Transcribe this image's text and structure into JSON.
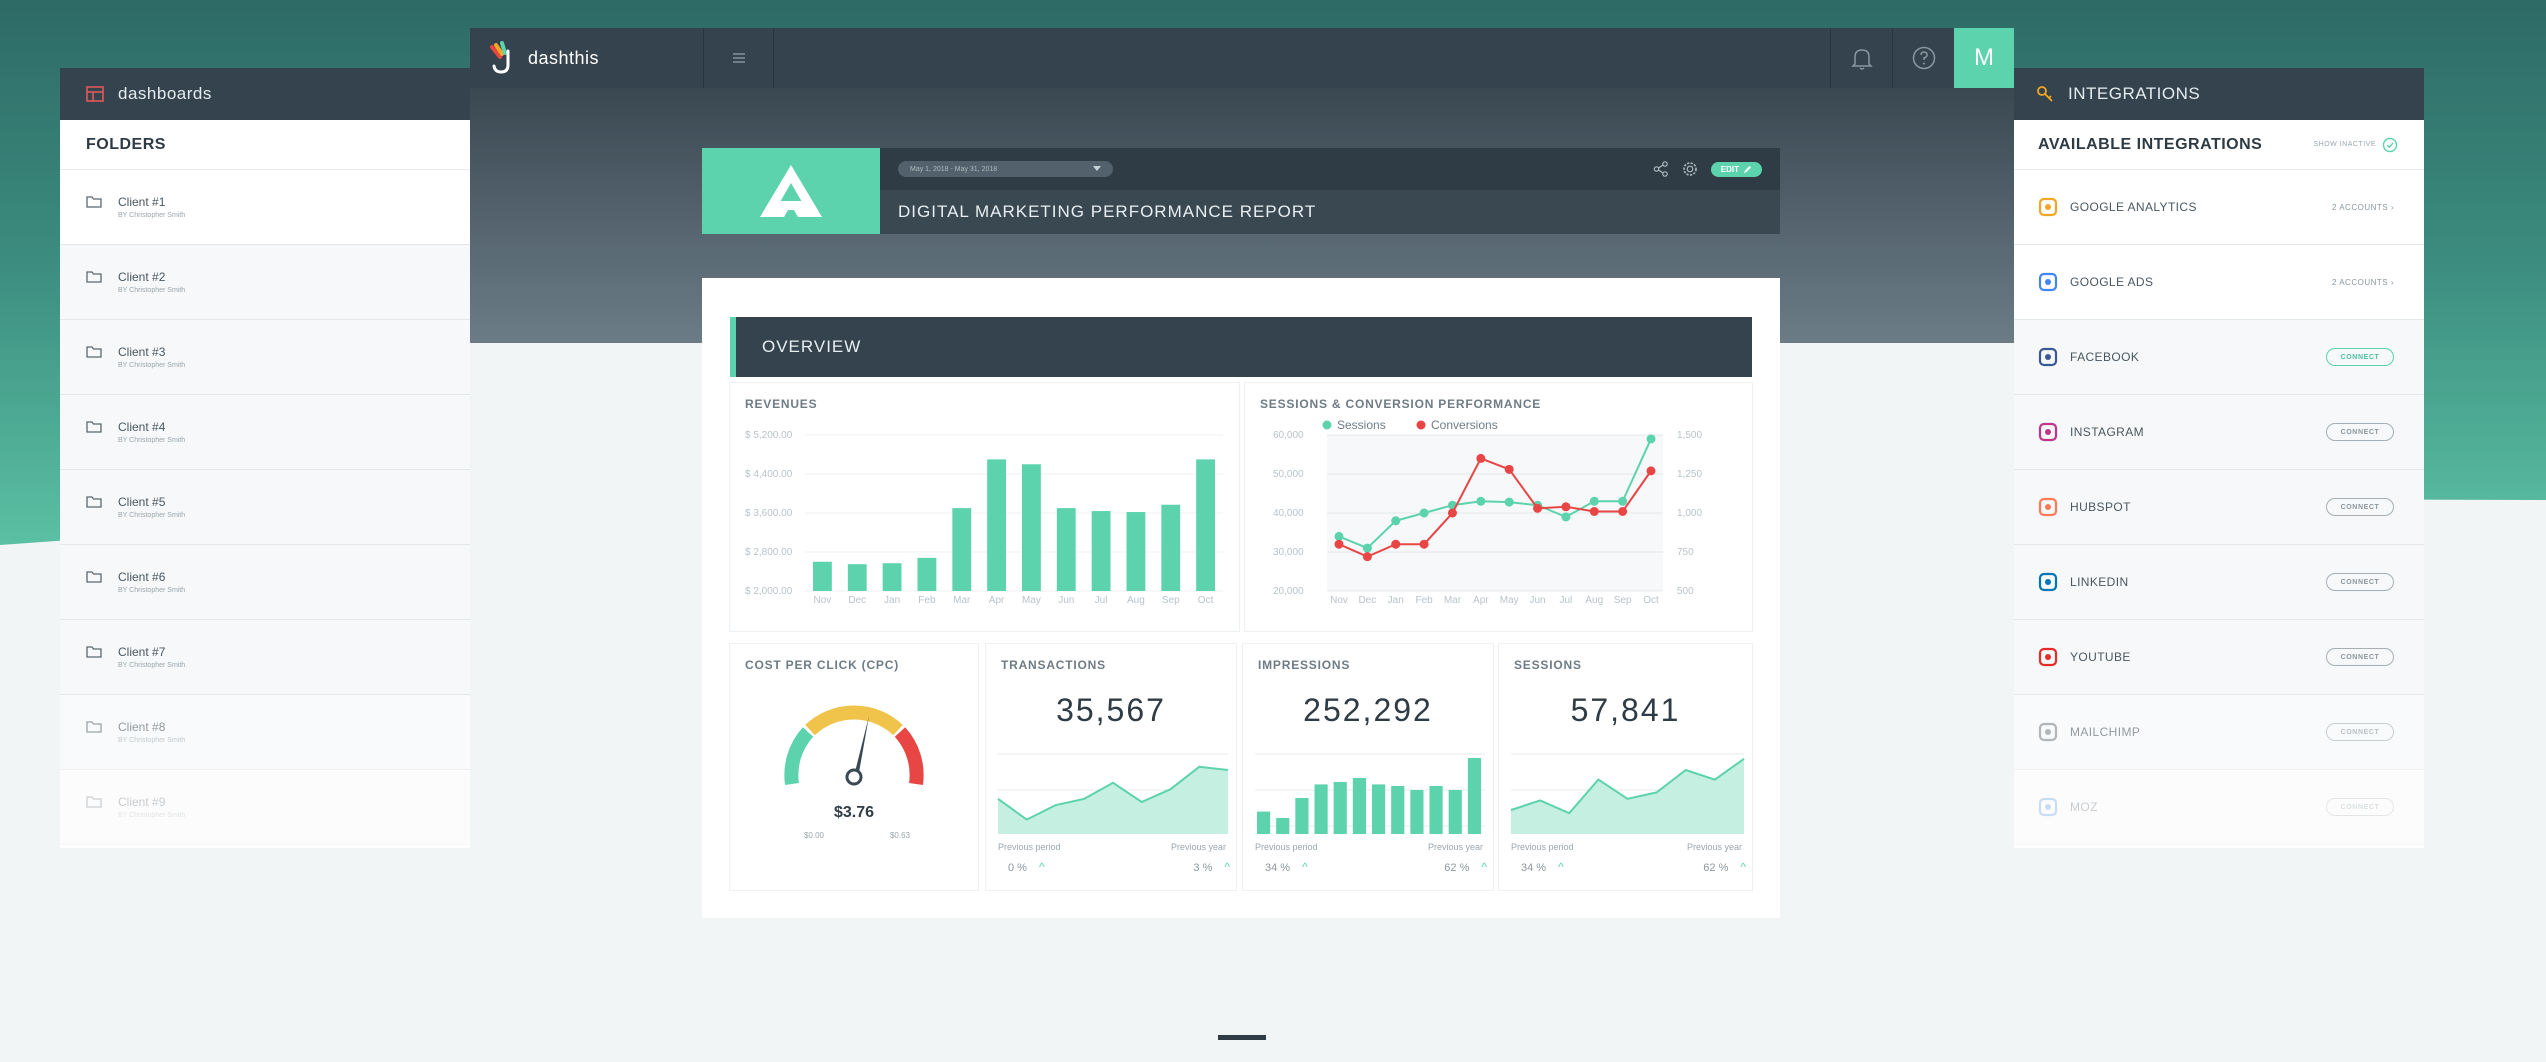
{
  "left_panel": {
    "title": "dashboards",
    "section": "FOLDERS",
    "folders": [
      {
        "name": "Client #1",
        "by": "BY Christopher Smith"
      },
      {
        "name": "Client #2",
        "by": "BY Christopher Smith"
      },
      {
        "name": "Client #3",
        "by": "BY Christopher Smith"
      },
      {
        "name": "Client #4",
        "by": "BY Christopher Smith"
      },
      {
        "name": "Client #5",
        "by": "BY Christopher Smith"
      },
      {
        "name": "Client #6",
        "by": "BY Christopher Smith"
      },
      {
        "name": "Client #7",
        "by": "BY Christopher Smith"
      },
      {
        "name": "Client #8",
        "by": "BY Christopher Smith"
      },
      {
        "name": "Client #9",
        "by": "BY Christopher Smith"
      }
    ]
  },
  "right_panel": {
    "title": "INTEGRATIONS",
    "section": "AVAILABLE INTEGRATIONS",
    "show_inactive": "SHOW INACTIVE",
    "integrations": [
      {
        "name": "GOOGLE ANALYTICS",
        "status": "2 ACCOUNTS",
        "type": "accounts",
        "color": "#f5a623"
      },
      {
        "name": "GOOGLE ADS",
        "status": "2 ACCOUNTS",
        "type": "accounts",
        "color": "#4285f4"
      },
      {
        "name": "FACEBOOK",
        "status": "CONNECT",
        "type": "primary",
        "color": "#3b5998"
      },
      {
        "name": "INSTAGRAM",
        "status": "CONNECT",
        "type": "plain",
        "color": "#c13584"
      },
      {
        "name": "HUBSPOT",
        "status": "CONNECT",
        "type": "plain",
        "color": "#ff7a59"
      },
      {
        "name": "LINKEDIN",
        "status": "CONNECT",
        "type": "plain",
        "color": "#0077b5"
      },
      {
        "name": "YOUTUBE",
        "status": "CONNECT",
        "type": "plain",
        "color": "#e52d27"
      },
      {
        "name": "MAILCHIMP",
        "status": "CONNECT",
        "type": "plain",
        "color": "#7c868c"
      },
      {
        "name": "MOZ",
        "status": "CONNECT",
        "type": "plain",
        "color": "#4a90d9"
      }
    ]
  },
  "app": {
    "brand": "dashthis",
    "avatar_letter": "M",
    "date_range": "May 1, 2018 - May 31, 2018",
    "report_title": "DIGITAL MARKETING PERFORMANCE REPORT",
    "edit_label": "EDIT",
    "overview_label": "OVERVIEW"
  },
  "widgets": {
    "revenues_title": "REVENUES",
    "sessions_conv_title": "SESSIONS & CONVERSION PERFORMANCE",
    "cpc_title": "COST PER CLICK (CPC)",
    "cpc_value": "$3.76",
    "cpc_min": "$0.00",
    "cpc_max": "$0.63",
    "transactions_title": "TRANSACTIONS",
    "transactions_value": "35,567",
    "transactions_prev": "0 %",
    "transactions_year": "3 %",
    "impressions_title": "IMPRESSIONS",
    "impressions_value": "252,292",
    "impressions_prev": "34 %",
    "impressions_year": "62 %",
    "sessions_title": "SESSIONS",
    "sessions_value": "57,841",
    "sessions_prev": "34 %",
    "sessions_year": "62 %",
    "previous_period": "Previous period",
    "previous_year": "Previous year"
  },
  "chart_data": [
    {
      "type": "bar",
      "title": "REVENUES",
      "categories": [
        "Nov",
        "Dec",
        "Jan",
        "Feb",
        "Mar",
        "Apr",
        "May",
        "Jun",
        "Jul",
        "Aug",
        "Sep",
        "Oct"
      ],
      "values": [
        2600,
        2550,
        2570,
        2680,
        3700,
        4700,
        4600,
        3700,
        3640,
        3620,
        3770,
        4700
      ],
      "ylim": [
        2000,
        5200
      ],
      "yticks": [
        "$ 5,200.00",
        "$ 4,400.00",
        "$ 3,600.00",
        "$ 2,800.00",
        "$ 2,000.00"
      ],
      "color": "#5dd3ad"
    },
    {
      "type": "line",
      "title": "SESSIONS & CONVERSION PERFORMANCE",
      "categories": [
        "Nov",
        "Dec",
        "Jan",
        "Feb",
        "Mar",
        "Apr",
        "May",
        "Jun",
        "Jul",
        "Aug",
        "Sep",
        "Oct"
      ],
      "legend_position": "top-left",
      "y_left_ticks": [
        "60,000",
        "50,000",
        "40,000",
        "30,000",
        "20,000"
      ],
      "y_right_ticks": [
        "1,500",
        "1,250",
        "1,000",
        "750",
        "500"
      ],
      "series": [
        {
          "name": "Sessions",
          "axis": "left",
          "color": "#5dd3ad",
          "values": [
            34000,
            31000,
            38000,
            40000,
            42000,
            43000,
            42800,
            42000,
            39000,
            43000,
            43000,
            59000
          ]
        },
        {
          "name": "Conversions",
          "axis": "right",
          "color": "#e84545",
          "values": [
            800,
            720,
            800,
            800,
            1000,
            1350,
            1280,
            1030,
            1040,
            1010,
            1010,
            1270
          ]
        }
      ]
    },
    {
      "type": "area",
      "title": "TRANSACTIONS",
      "values": [
        22,
        9,
        18,
        22,
        32,
        20,
        28,
        42,
        40
      ]
    },
    {
      "type": "bar",
      "title": "IMPRESSIONS",
      "values": [
        28,
        20,
        45,
        62,
        65,
        70,
        62,
        60,
        55,
        60,
        55,
        95
      ]
    },
    {
      "type": "area",
      "title": "SESSIONS",
      "values": [
        15,
        21,
        13,
        34,
        22,
        26,
        40,
        34,
        47
      ]
    }
  ]
}
